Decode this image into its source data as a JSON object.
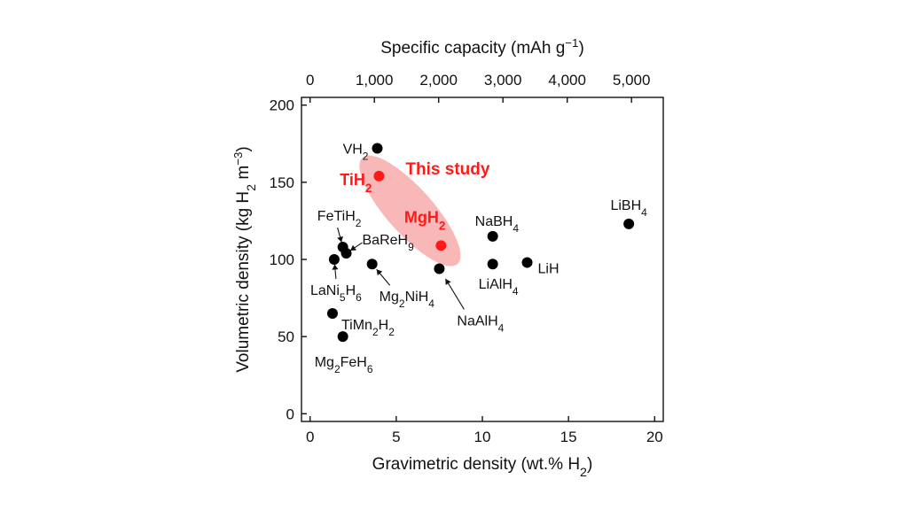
{
  "chart_data": {
    "type": "scatter",
    "x_axis": {
      "label": "Gravimetric density (wt.% H2)",
      "lim": [
        -0.5,
        20.5
      ],
      "ticks": [
        0,
        5,
        10,
        15,
        20
      ],
      "tick_labels": [
        "0",
        "5",
        "10",
        "15",
        "20"
      ]
    },
    "y_axis": {
      "label": "Volumetric density (kg H2 m−3)",
      "lim": [
        -5,
        205
      ],
      "ticks": [
        0,
        50,
        100,
        150,
        200
      ],
      "tick_labels": [
        "0",
        "50",
        "100",
        "150",
        "200"
      ]
    },
    "top_axis": {
      "label": "Specific capacity (mAh g−1)",
      "ticks": [
        0,
        1000,
        2000,
        3000,
        4000,
        5000
      ],
      "tick_labels": [
        "0",
        "1,000",
        "2,000",
        "3,000",
        "4,000",
        "5,000"
      ],
      "mAh_per_wt_percent": 268
    },
    "highlight_label": "This study",
    "highlight_color": "#ff1a1a",
    "highlight_region_color": "#f9b8b8",
    "point_color": "#000000",
    "grid": false,
    "points": [
      {
        "label": "VH2",
        "x": 3.9,
        "y": 172,
        "highlight": false
      },
      {
        "label": "TiH2",
        "x": 4.0,
        "y": 154,
        "highlight": true
      },
      {
        "label": "MgH2",
        "x": 7.6,
        "y": 109,
        "highlight": true
      },
      {
        "label": "FeTiH2",
        "x": 1.9,
        "y": 108,
        "highlight": false
      },
      {
        "label": "BaReH9",
        "x": 2.1,
        "y": 104,
        "highlight": false
      },
      {
        "label": "LaNi5H6",
        "x": 1.4,
        "y": 100,
        "highlight": false
      },
      {
        "label": "Mg2NiH4",
        "x": 3.6,
        "y": 97,
        "highlight": false
      },
      {
        "label": "NaAlH4",
        "x": 7.5,
        "y": 94,
        "highlight": false
      },
      {
        "label": "NaBH4",
        "x": 10.6,
        "y": 115,
        "highlight": false
      },
      {
        "label": "LiAlH4",
        "x": 10.6,
        "y": 97,
        "highlight": false
      },
      {
        "label": "LiH",
        "x": 12.6,
        "y": 98,
        "highlight": false
      },
      {
        "label": "LiBH4",
        "x": 18.5,
        "y": 123,
        "highlight": false
      },
      {
        "label": "TiMn2H2",
        "x": 1.3,
        "y": 65,
        "highlight": false
      },
      {
        "label": "Mg2FeH6",
        "x": 1.9,
        "y": 50,
        "highlight": false
      }
    ]
  }
}
